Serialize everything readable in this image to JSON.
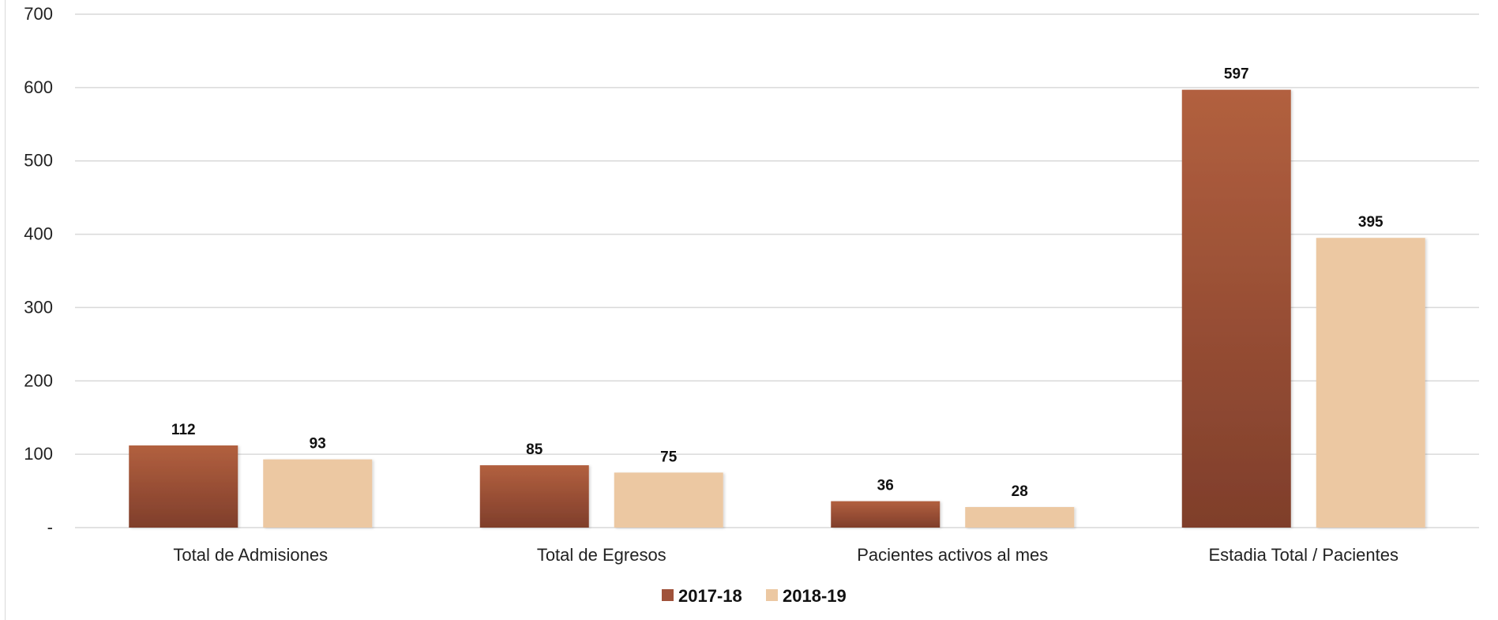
{
  "chart_data": {
    "type": "bar",
    "categories": [
      "Total de Admisiones",
      "Total de Egresos",
      "Pacientes activos al mes",
      "Estadia Total / Pacientes"
    ],
    "series": [
      {
        "name": "2017-18",
        "values": [
          112,
          85,
          36,
          597
        ],
        "color": "#a0523a"
      },
      {
        "name": "2018-19",
        "values": [
          93,
          75,
          28,
          395
        ],
        "color": "#ecc8a2"
      }
    ],
    "ylim": [
      0,
      700
    ],
    "yticks": [
      0,
      100,
      200,
      300,
      400,
      500,
      600,
      700
    ],
    "ytick_labels": [
      "-",
      "100",
      "200",
      "300",
      "400",
      "500",
      "600",
      "700"
    ],
    "grid": true,
    "legend": "bottom-center",
    "data_labels": true
  }
}
